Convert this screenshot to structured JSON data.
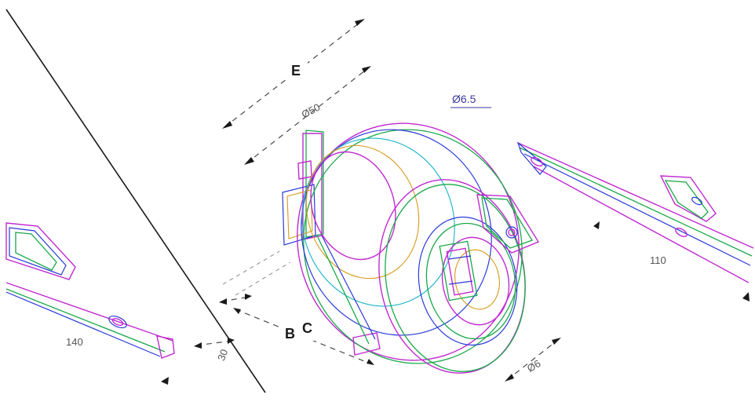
{
  "labels": {
    "dim_E": "E",
    "dim_top_value": "Ø50",
    "diameter_label": "Ø6.5",
    "dim_B": "B",
    "dim_C": "C",
    "dim_left_value": "30",
    "dim_bottom_right_value": "Ø6",
    "left_bracket_value": "140",
    "right_bracket_value": "110"
  },
  "colors": {
    "line_magenta": "#c02ad0",
    "line_green": "#1aa84a",
    "line_blue": "#2a3ad8",
    "line_orange": "#d89a1a",
    "dimension": "#4a4a4a",
    "section_line": "#1a1a1a"
  }
}
